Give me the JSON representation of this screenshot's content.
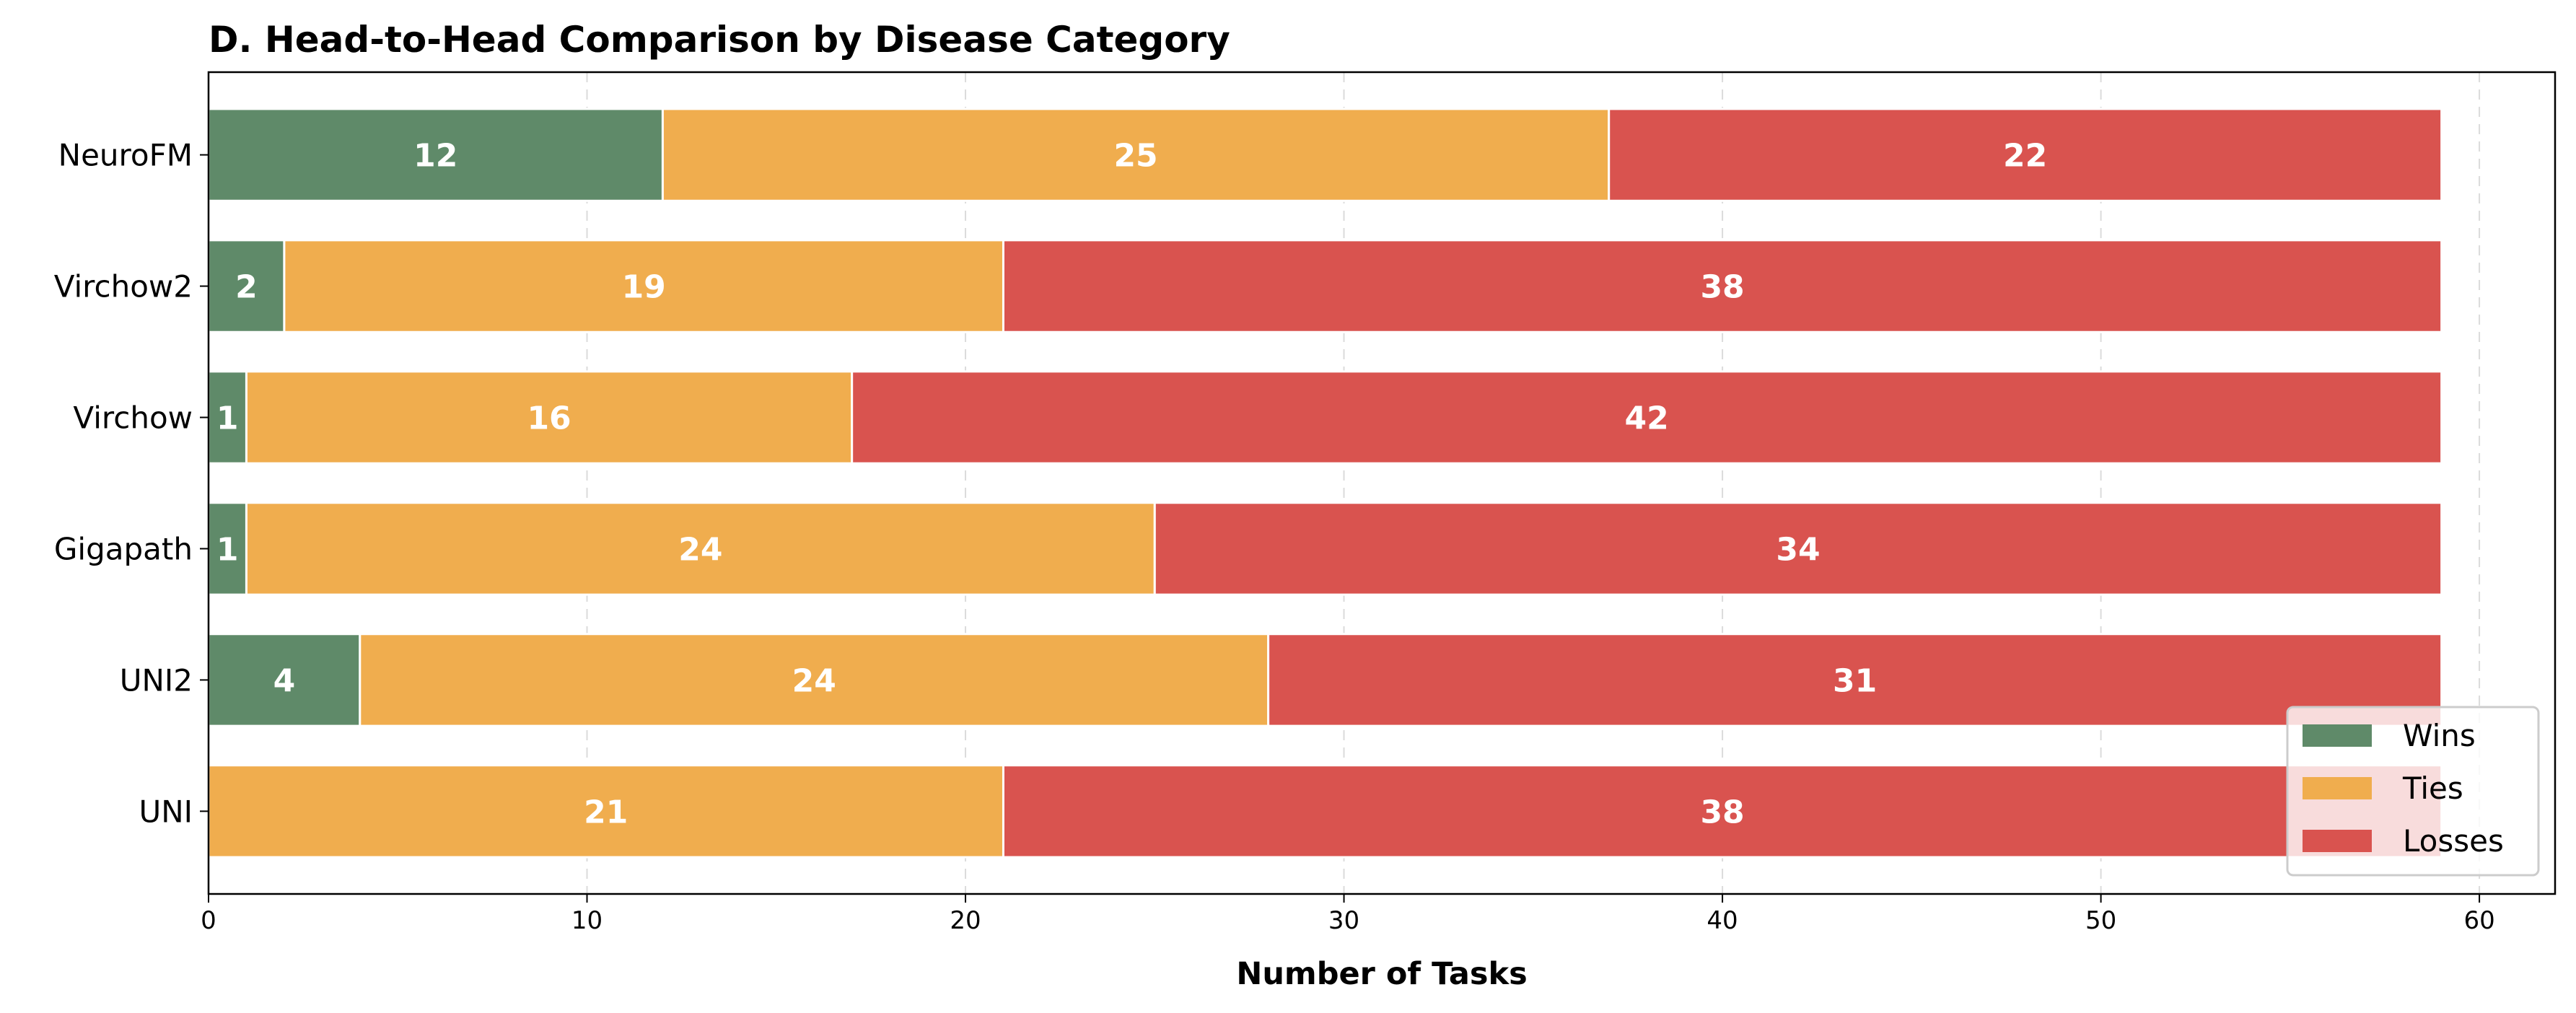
{
  "chart_data": {
    "type": "bar",
    "orientation": "horizontal",
    "stacked": true,
    "title": "D. Head-to-Head Comparison by Disease Category",
    "xlabel": "Number of Tasks",
    "ylabel": "",
    "xlim": [
      0,
      62
    ],
    "xticks": [
      0,
      10,
      20,
      30,
      40,
      50,
      60
    ],
    "grid": "x dashed",
    "legend_position": "lower-right",
    "categories": [
      "NeuroFM",
      "Virchow2",
      "Virchow",
      "Gigapath",
      "UNI2",
      "UNI"
    ],
    "series": [
      {
        "name": "Wins",
        "color": "#5f8a69",
        "values": [
          12,
          2,
          1,
          1,
          4,
          0
        ]
      },
      {
        "name": "Ties",
        "color": "#f0ad4e",
        "values": [
          25,
          19,
          16,
          24,
          24,
          21
        ]
      },
      {
        "name": "Losses",
        "color": "#d9534f",
        "values": [
          22,
          38,
          42,
          34,
          31,
          38
        ]
      }
    ]
  }
}
